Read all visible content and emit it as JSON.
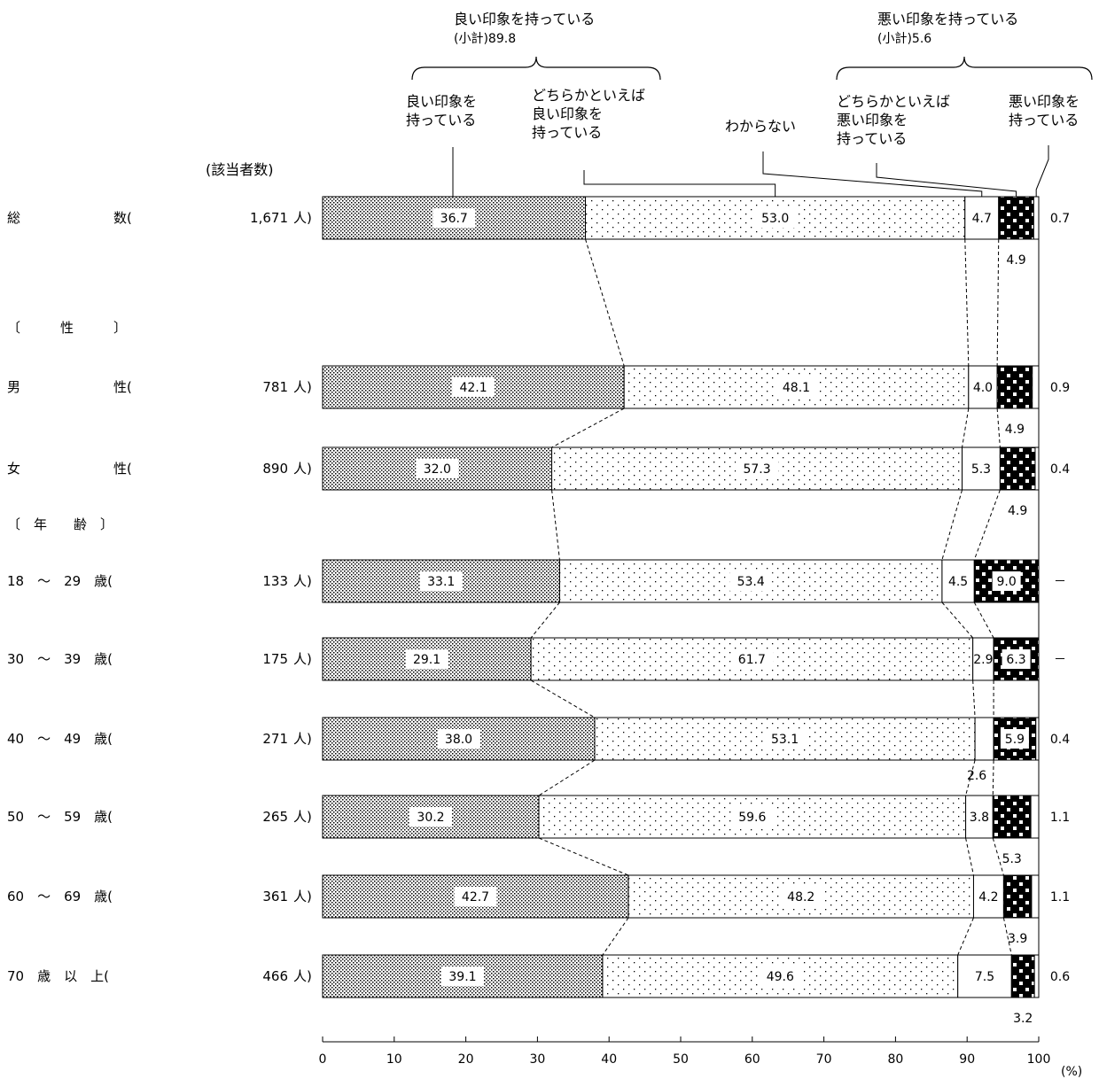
{
  "chart_data": {
    "type": "bar",
    "stacked": true,
    "orientation": "horizontal",
    "unit": "(%)",
    "count_header": "(該当者数)",
    "xlim": [
      0,
      100
    ],
    "xticks": [
      0,
      10,
      20,
      30,
      40,
      50,
      60,
      70,
      80,
      90,
      100
    ],
    "group_labels": {
      "good": "良い印象を持っている",
      "good_subtotal": "(小計)89.8",
      "bad": "悪い印象を持っている",
      "bad_subtotal": "(小計)5.6"
    },
    "series": [
      {
        "name": "良い印象を\n持っている",
        "pattern": "dense"
      },
      {
        "name": "どちらかといえば\n良い印象を\n持っている",
        "pattern": "sparse"
      },
      {
        "name": "わからない",
        "pattern": "white"
      },
      {
        "name": "どちらかといえば\n悪い印象を\n持っている",
        "pattern": "checker"
      },
      {
        "name": "悪い印象を\n持っている",
        "pattern": "white"
      }
    ],
    "sections": [
      {
        "label": "〔　　　性　　　〕",
        "before_row": 1
      },
      {
        "label": "〔　年　　齢　〕",
        "before_row": 3
      }
    ],
    "rows": [
      {
        "label": "総　　　　　　　数(",
        "n": "1,671",
        "unit": "人)",
        "values": [
          36.7,
          53.0,
          4.7,
          4.9,
          0.7
        ],
        "labels": [
          "36.7",
          "53.0",
          "4.7",
          "4.9",
          "0.7"
        ]
      },
      {
        "label": "男　　　　　　　性(",
        "n": "781",
        "unit": "人)",
        "values": [
          42.1,
          48.1,
          4.0,
          4.9,
          0.9
        ],
        "labels": [
          "42.1",
          "48.1",
          "4.0",
          "4.9",
          "0.9"
        ]
      },
      {
        "label": "女　　　　　　　性(",
        "n": "890",
        "unit": "人)",
        "values": [
          32.0,
          57.3,
          5.3,
          4.9,
          0.4
        ],
        "labels": [
          "32.0",
          "57.3",
          "5.3",
          "4.9",
          "0.4"
        ]
      },
      {
        "label": "18　～　29　歳(",
        "n": "133",
        "unit": "人)",
        "values": [
          33.1,
          53.4,
          4.5,
          9.0,
          0
        ],
        "labels": [
          "33.1",
          "53.4",
          "4.5",
          "9.0",
          "－"
        ]
      },
      {
        "label": "30　～　39　歳(",
        "n": "175",
        "unit": "人)",
        "values": [
          29.1,
          61.7,
          2.9,
          6.3,
          0
        ],
        "labels": [
          "29.1",
          "61.7",
          "2.9",
          "6.3",
          "－"
        ]
      },
      {
        "label": "40　～　49　歳(",
        "n": "271",
        "unit": "人)",
        "values": [
          38.0,
          53.1,
          2.6,
          5.9,
          0.4
        ],
        "labels": [
          "38.0",
          "53.1",
          "2.6",
          "5.9",
          "0.4"
        ]
      },
      {
        "label": "50　～　59　歳(",
        "n": "265",
        "unit": "人)",
        "values": [
          30.2,
          59.6,
          3.8,
          5.3,
          1.1
        ],
        "labels": [
          "30.2",
          "59.6",
          "3.8",
          "5.3",
          "1.1"
        ]
      },
      {
        "label": "60　～　69　歳(",
        "n": "361",
        "unit": "人)",
        "values": [
          42.7,
          48.2,
          4.2,
          3.9,
          1.1
        ],
        "labels": [
          "42.7",
          "48.2",
          "4.2",
          "3.9",
          "1.1"
        ]
      },
      {
        "label": "70　歳　以　上(",
        "n": "466",
        "unit": "人)",
        "values": [
          39.1,
          49.6,
          7.5,
          3.2,
          0.6
        ],
        "labels": [
          "39.1",
          "49.6",
          "7.5",
          "3.2",
          "0.6"
        ]
      }
    ]
  }
}
